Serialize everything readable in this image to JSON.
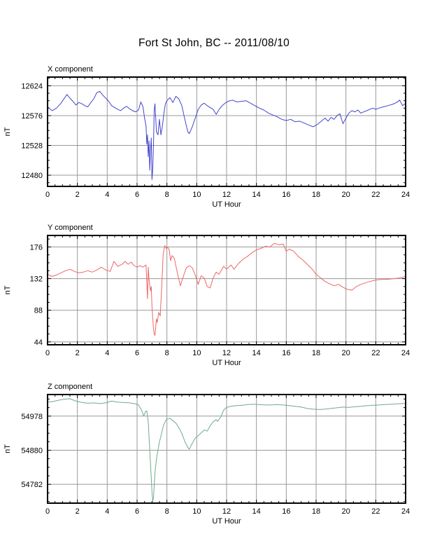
{
  "title": "Fort St John, BC -- 2011/08/10",
  "colors": {
    "grid": "#999999",
    "frame": "#000000",
    "text": "#000000",
    "x_line": "#4444cc",
    "y_line": "#ee6666",
    "z_line": "#74a98c"
  },
  "chart_data": [
    {
      "type": "line",
      "title": "X component",
      "ylabel": "nT",
      "xlabel": "UT Hour",
      "color": "#4444cc",
      "xlim": [
        0,
        24
      ],
      "xticks": [
        0,
        2,
        4,
        6,
        8,
        10,
        12,
        14,
        16,
        18,
        20,
        22,
        24
      ],
      "ylim": [
        12462,
        12638
      ],
      "yticks": [
        12480,
        12528,
        12576,
        12624
      ],
      "points": [
        [
          0,
          12590
        ],
        [
          0.3,
          12584
        ],
        [
          0.6,
          12588
        ],
        [
          0.9,
          12596
        ],
        [
          1.1,
          12603
        ],
        [
          1.3,
          12610
        ],
        [
          1.5,
          12604
        ],
        [
          1.7,
          12599
        ],
        [
          1.9,
          12593
        ],
        [
          2.1,
          12597
        ],
        [
          2.3,
          12595
        ],
        [
          2.5,
          12592
        ],
        [
          2.7,
          12590
        ],
        [
          2.9,
          12597
        ],
        [
          3.1,
          12603
        ],
        [
          3.3,
          12613
        ],
        [
          3.5,
          12615
        ],
        [
          3.7,
          12609
        ],
        [
          3.9,
          12604
        ],
        [
          4.1,
          12599
        ],
        [
          4.3,
          12592
        ],
        [
          4.5,
          12589
        ],
        [
          4.7,
          12586
        ],
        [
          4.9,
          12584
        ],
        [
          5.1,
          12588
        ],
        [
          5.3,
          12591
        ],
        [
          5.5,
          12587
        ],
        [
          5.7,
          12584
        ],
        [
          5.9,
          12582
        ],
        [
          6.1,
          12585
        ],
        [
          6.25,
          12598
        ],
        [
          6.4,
          12590
        ],
        [
          6.5,
          12572
        ],
        [
          6.6,
          12560
        ],
        [
          6.65,
          12530
        ],
        [
          6.7,
          12545
        ],
        [
          6.75,
          12510
        ],
        [
          6.8,
          12535
        ],
        [
          6.85,
          12488
        ],
        [
          6.9,
          12520
        ],
        [
          6.95,
          12540
        ],
        [
          7.0,
          12473
        ],
        [
          7.05,
          12490
        ],
        [
          7.1,
          12530
        ],
        [
          7.15,
          12585
        ],
        [
          7.2,
          12595
        ],
        [
          7.3,
          12550
        ],
        [
          7.4,
          12545
        ],
        [
          7.5,
          12570
        ],
        [
          7.6,
          12545
        ],
        [
          7.7,
          12560
        ],
        [
          7.8,
          12580
        ],
        [
          7.9,
          12595
        ],
        [
          8.0,
          12600
        ],
        [
          8.2,
          12605
        ],
        [
          8.4,
          12597
        ],
        [
          8.6,
          12607
        ],
        [
          8.8,
          12603
        ],
        [
          9.0,
          12592
        ],
        [
          9.2,
          12570
        ],
        [
          9.4,
          12550
        ],
        [
          9.5,
          12547
        ],
        [
          9.7,
          12558
        ],
        [
          9.9,
          12572
        ],
        [
          10.1,
          12586
        ],
        [
          10.3,
          12593
        ],
        [
          10.5,
          12596
        ],
        [
          10.7,
          12592
        ],
        [
          10.9,
          12589
        ],
        [
          11.1,
          12586
        ],
        [
          11.3,
          12578
        ],
        [
          11.5,
          12586
        ],
        [
          11.7,
          12592
        ],
        [
          11.9,
          12596
        ],
        [
          12.1,
          12599
        ],
        [
          12.4,
          12601
        ],
        [
          12.7,
          12598
        ],
        [
          13.0,
          12599
        ],
        [
          13.3,
          12600
        ],
        [
          13.6,
          12596
        ],
        [
          13.9,
          12592
        ],
        [
          14.2,
          12588
        ],
        [
          14.5,
          12585
        ],
        [
          14.8,
          12580
        ],
        [
          15.1,
          12577
        ],
        [
          15.4,
          12574
        ],
        [
          15.7,
          12570
        ],
        [
          16.0,
          12568
        ],
        [
          16.3,
          12570
        ],
        [
          16.6,
          12566
        ],
        [
          16.9,
          12567
        ],
        [
          17.2,
          12564
        ],
        [
          17.5,
          12561
        ],
        [
          17.8,
          12558
        ],
        [
          18.1,
          12562
        ],
        [
          18.4,
          12568
        ],
        [
          18.6,
          12572
        ],
        [
          18.8,
          12567
        ],
        [
          19.0,
          12573
        ],
        [
          19.2,
          12570
        ],
        [
          19.4,
          12576
        ],
        [
          19.6,
          12579
        ],
        [
          19.8,
          12563
        ],
        [
          20.0,
          12572
        ],
        [
          20.2,
          12580
        ],
        [
          20.4,
          12584
        ],
        [
          20.6,
          12582
        ],
        [
          20.8,
          12585
        ],
        [
          21.0,
          12580
        ],
        [
          21.2,
          12582
        ],
        [
          21.4,
          12584
        ],
        [
          21.6,
          12586
        ],
        [
          21.8,
          12588
        ],
        [
          22.0,
          12586
        ],
        [
          22.2,
          12588
        ],
        [
          22.5,
          12590
        ],
        [
          22.8,
          12592
        ],
        [
          23.1,
          12594
        ],
        [
          23.4,
          12597
        ],
        [
          23.6,
          12601
        ],
        [
          23.8,
          12592
        ],
        [
          24.0,
          12596
        ]
      ]
    },
    {
      "type": "line",
      "title": "Y component",
      "ylabel": "nT",
      "xlabel": "UT Hour",
      "color": "#ee6666",
      "xlim": [
        0,
        24
      ],
      "xticks": [
        0,
        2,
        4,
        6,
        8,
        10,
        12,
        14,
        16,
        18,
        20,
        22,
        24
      ],
      "ylim": [
        40,
        192
      ],
      "yticks": [
        44,
        88,
        132,
        176
      ],
      "points": [
        [
          0,
          138
        ],
        [
          0.3,
          135
        ],
        [
          0.6,
          137
        ],
        [
          0.9,
          140
        ],
        [
          1.2,
          143
        ],
        [
          1.5,
          145
        ],
        [
          1.8,
          142
        ],
        [
          2.1,
          140
        ],
        [
          2.4,
          141
        ],
        [
          2.7,
          143
        ],
        [
          3.0,
          141
        ],
        [
          3.3,
          144
        ],
        [
          3.6,
          148
        ],
        [
          3.9,
          144
        ],
        [
          4.2,
          142
        ],
        [
          4.45,
          156
        ],
        [
          4.7,
          149
        ],
        [
          5.0,
          152
        ],
        [
          5.2,
          156
        ],
        [
          5.4,
          152
        ],
        [
          5.6,
          155
        ],
        [
          5.8,
          150
        ],
        [
          6.0,
          148
        ],
        [
          6.2,
          150
        ],
        [
          6.4,
          148
        ],
        [
          6.6,
          151
        ],
        [
          6.7,
          104
        ],
        [
          6.75,
          148
        ],
        [
          6.8,
          131
        ],
        [
          6.9,
          115
        ],
        [
          6.95,
          121
        ],
        [
          7.0,
          93
        ],
        [
          7.1,
          62
        ],
        [
          7.15,
          55
        ],
        [
          7.2,
          53
        ],
        [
          7.3,
          76
        ],
        [
          7.35,
          71
        ],
        [
          7.45,
          85
        ],
        [
          7.55,
          80
        ],
        [
          7.65,
          120
        ],
        [
          7.75,
          165
        ],
        [
          7.85,
          178
        ],
        [
          7.95,
          174
        ],
        [
          8.05,
          176
        ],
        [
          8.15,
          172
        ],
        [
          8.25,
          157
        ],
        [
          8.35,
          164
        ],
        [
          8.5,
          160
        ],
        [
          8.7,
          140
        ],
        [
          8.9,
          122
        ],
        [
          9.1,
          135
        ],
        [
          9.3,
          147
        ],
        [
          9.5,
          150
        ],
        [
          9.7,
          147
        ],
        [
          9.9,
          137
        ],
        [
          10.1,
          124
        ],
        [
          10.3,
          136
        ],
        [
          10.5,
          133
        ],
        [
          10.7,
          121
        ],
        [
          10.9,
          119
        ],
        [
          11.1,
          133
        ],
        [
          11.3,
          141
        ],
        [
          11.5,
          138
        ],
        [
          11.8,
          149
        ],
        [
          12.0,
          145
        ],
        [
          12.3,
          151
        ],
        [
          12.5,
          145
        ],
        [
          12.8,
          153
        ],
        [
          13.1,
          159
        ],
        [
          13.4,
          163
        ],
        [
          13.7,
          168
        ],
        [
          14.0,
          172
        ],
        [
          14.3,
          174
        ],
        [
          14.6,
          177
        ],
        [
          14.9,
          176
        ],
        [
          15.2,
          181
        ],
        [
          15.5,
          179
        ],
        [
          15.8,
          180
        ],
        [
          16.0,
          170
        ],
        [
          16.2,
          173
        ],
        [
          16.5,
          170
        ],
        [
          16.8,
          163
        ],
        [
          17.1,
          158
        ],
        [
          17.4,
          152
        ],
        [
          17.7,
          146
        ],
        [
          18.0,
          138
        ],
        [
          18.3,
          133
        ],
        [
          18.6,
          128
        ],
        [
          18.9,
          125
        ],
        [
          19.2,
          122
        ],
        [
          19.5,
          124
        ],
        [
          19.8,
          120
        ],
        [
          20.1,
          117
        ],
        [
          20.4,
          116
        ],
        [
          20.7,
          121
        ],
        [
          21.0,
          124
        ],
        [
          21.3,
          126
        ],
        [
          21.6,
          128
        ],
        [
          22.0,
          130
        ],
        [
          22.4,
          131
        ],
        [
          22.8,
          131
        ],
        [
          23.2,
          132
        ],
        [
          23.6,
          133
        ],
        [
          24.0,
          135
        ]
      ]
    },
    {
      "type": "line",
      "title": "Z component",
      "ylabel": "nT",
      "xlabel": "UT Hour",
      "color": "#74a98c",
      "xlim": [
        0,
        24
      ],
      "xticks": [
        0,
        2,
        4,
        6,
        8,
        10,
        12,
        14,
        16,
        18,
        20,
        22,
        24
      ],
      "ylim": [
        54728,
        55040
      ],
      "yticks": [
        54782,
        54880,
        54978
      ],
      "points": [
        [
          0,
          55018
        ],
        [
          0.4,
          55020
        ],
        [
          0.8,
          55024
        ],
        [
          1.2,
          55027
        ],
        [
          1.5,
          55028
        ],
        [
          1.9,
          55021
        ],
        [
          2.3,
          55017
        ],
        [
          2.7,
          55015
        ],
        [
          3.1,
          55016
        ],
        [
          3.5,
          55014
        ],
        [
          3.9,
          55016
        ],
        [
          4.3,
          55021
        ],
        [
          4.7,
          55018
        ],
        [
          5.1,
          55017
        ],
        [
          5.5,
          55016
        ],
        [
          5.9,
          55013
        ],
        [
          6.1,
          55010
        ],
        [
          6.3,
          54995
        ],
        [
          6.45,
          54978
        ],
        [
          6.55,
          54990
        ],
        [
          6.65,
          54993
        ],
        [
          6.75,
          54960
        ],
        [
          6.85,
          54880
        ],
        [
          6.95,
          54800
        ],
        [
          7.0,
          54760
        ],
        [
          7.05,
          54733
        ],
        [
          7.1,
          54745
        ],
        [
          7.2,
          54815
        ],
        [
          7.3,
          54855
        ],
        [
          7.4,
          54880
        ],
        [
          7.5,
          54905
        ],
        [
          7.6,
          54920
        ],
        [
          7.7,
          54940
        ],
        [
          7.8,
          54955
        ],
        [
          7.9,
          54963
        ],
        [
          8.0,
          54970
        ],
        [
          8.2,
          54972
        ],
        [
          8.4,
          54965
        ],
        [
          8.6,
          54958
        ],
        [
          8.8,
          54945
        ],
        [
          9.0,
          54928
        ],
        [
          9.2,
          54905
        ],
        [
          9.4,
          54888
        ],
        [
          9.5,
          54883
        ],
        [
          9.7,
          54900
        ],
        [
          9.9,
          54915
        ],
        [
          10.1,
          54922
        ],
        [
          10.3,
          54930
        ],
        [
          10.5,
          54938
        ],
        [
          10.7,
          54935
        ],
        [
          10.9,
          54950
        ],
        [
          11.1,
          54962
        ],
        [
          11.3,
          54968
        ],
        [
          11.4,
          54963
        ],
        [
          11.6,
          54975
        ],
        [
          11.8,
          54995
        ],
        [
          12.0,
          55003
        ],
        [
          12.3,
          55006
        ],
        [
          12.6,
          55008
        ],
        [
          13.0,
          55009
        ],
        [
          13.4,
          55011
        ],
        [
          13.8,
          55012
        ],
        [
          14.2,
          55011
        ],
        [
          14.6,
          55010
        ],
        [
          15.0,
          55010
        ],
        [
          15.4,
          55011
        ],
        [
          15.8,
          55010
        ],
        [
          16.2,
          55008
        ],
        [
          16.6,
          55006
        ],
        [
          17.0,
          55004
        ],
        [
          17.4,
          55000
        ],
        [
          17.8,
          54998
        ],
        [
          18.2,
          54997
        ],
        [
          18.6,
          54998
        ],
        [
          19.0,
          55000
        ],
        [
          19.4,
          55002
        ],
        [
          19.8,
          55004
        ],
        [
          20.2,
          55003
        ],
        [
          20.6,
          55005
        ],
        [
          21.0,
          55006
        ],
        [
          21.4,
          55008
        ],
        [
          21.8,
          55009
        ],
        [
          22.2,
          55010
        ],
        [
          22.6,
          55011
        ],
        [
          23.0,
          55012
        ],
        [
          23.4,
          55013
        ],
        [
          23.8,
          55014
        ],
        [
          24.0,
          55014
        ]
      ]
    }
  ]
}
